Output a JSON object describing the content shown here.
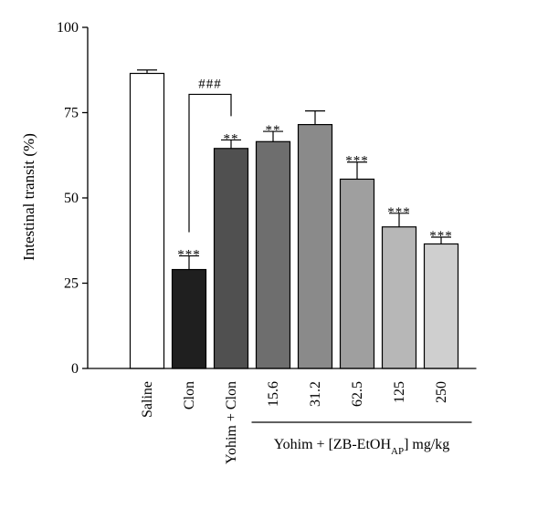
{
  "chart_data": {
    "type": "bar",
    "ylabel": "Intestinal transit (%)",
    "xlabel": "",
    "ylim": [
      0,
      100
    ],
    "yticks": [
      0,
      25,
      50,
      75,
      100
    ],
    "categories": [
      "Saline",
      "Clon",
      "Yohim + Clon",
      "15.6",
      "31.2",
      "62.5",
      "125",
      "250"
    ],
    "values": [
      86.5,
      29.0,
      64.5,
      66.5,
      71.5,
      55.5,
      41.5,
      36.5
    ],
    "errors": [
      1.0,
      4.0,
      2.5,
      3.0,
      4.0,
      5.0,
      4.0,
      2.0
    ],
    "colors": [
      "#ffffff",
      "#1f1f1f",
      "#505050",
      "#6e6e6e",
      "#8a8a8a",
      "#9f9f9f",
      "#b7b7b7",
      "#cfcfcf"
    ],
    "significance": [
      "",
      "***",
      "**",
      "**",
      "",
      "***",
      "***",
      "***"
    ],
    "comparison": {
      "from": 1,
      "to": 2,
      "label": "###"
    },
    "group_label": {
      "prefix": "Yohim + [ZB-EtOH",
      "subscript": "AP",
      "suffix": "] mg/kg",
      "start": 3,
      "end": 7
    },
    "grid": false,
    "legend": "none"
  }
}
